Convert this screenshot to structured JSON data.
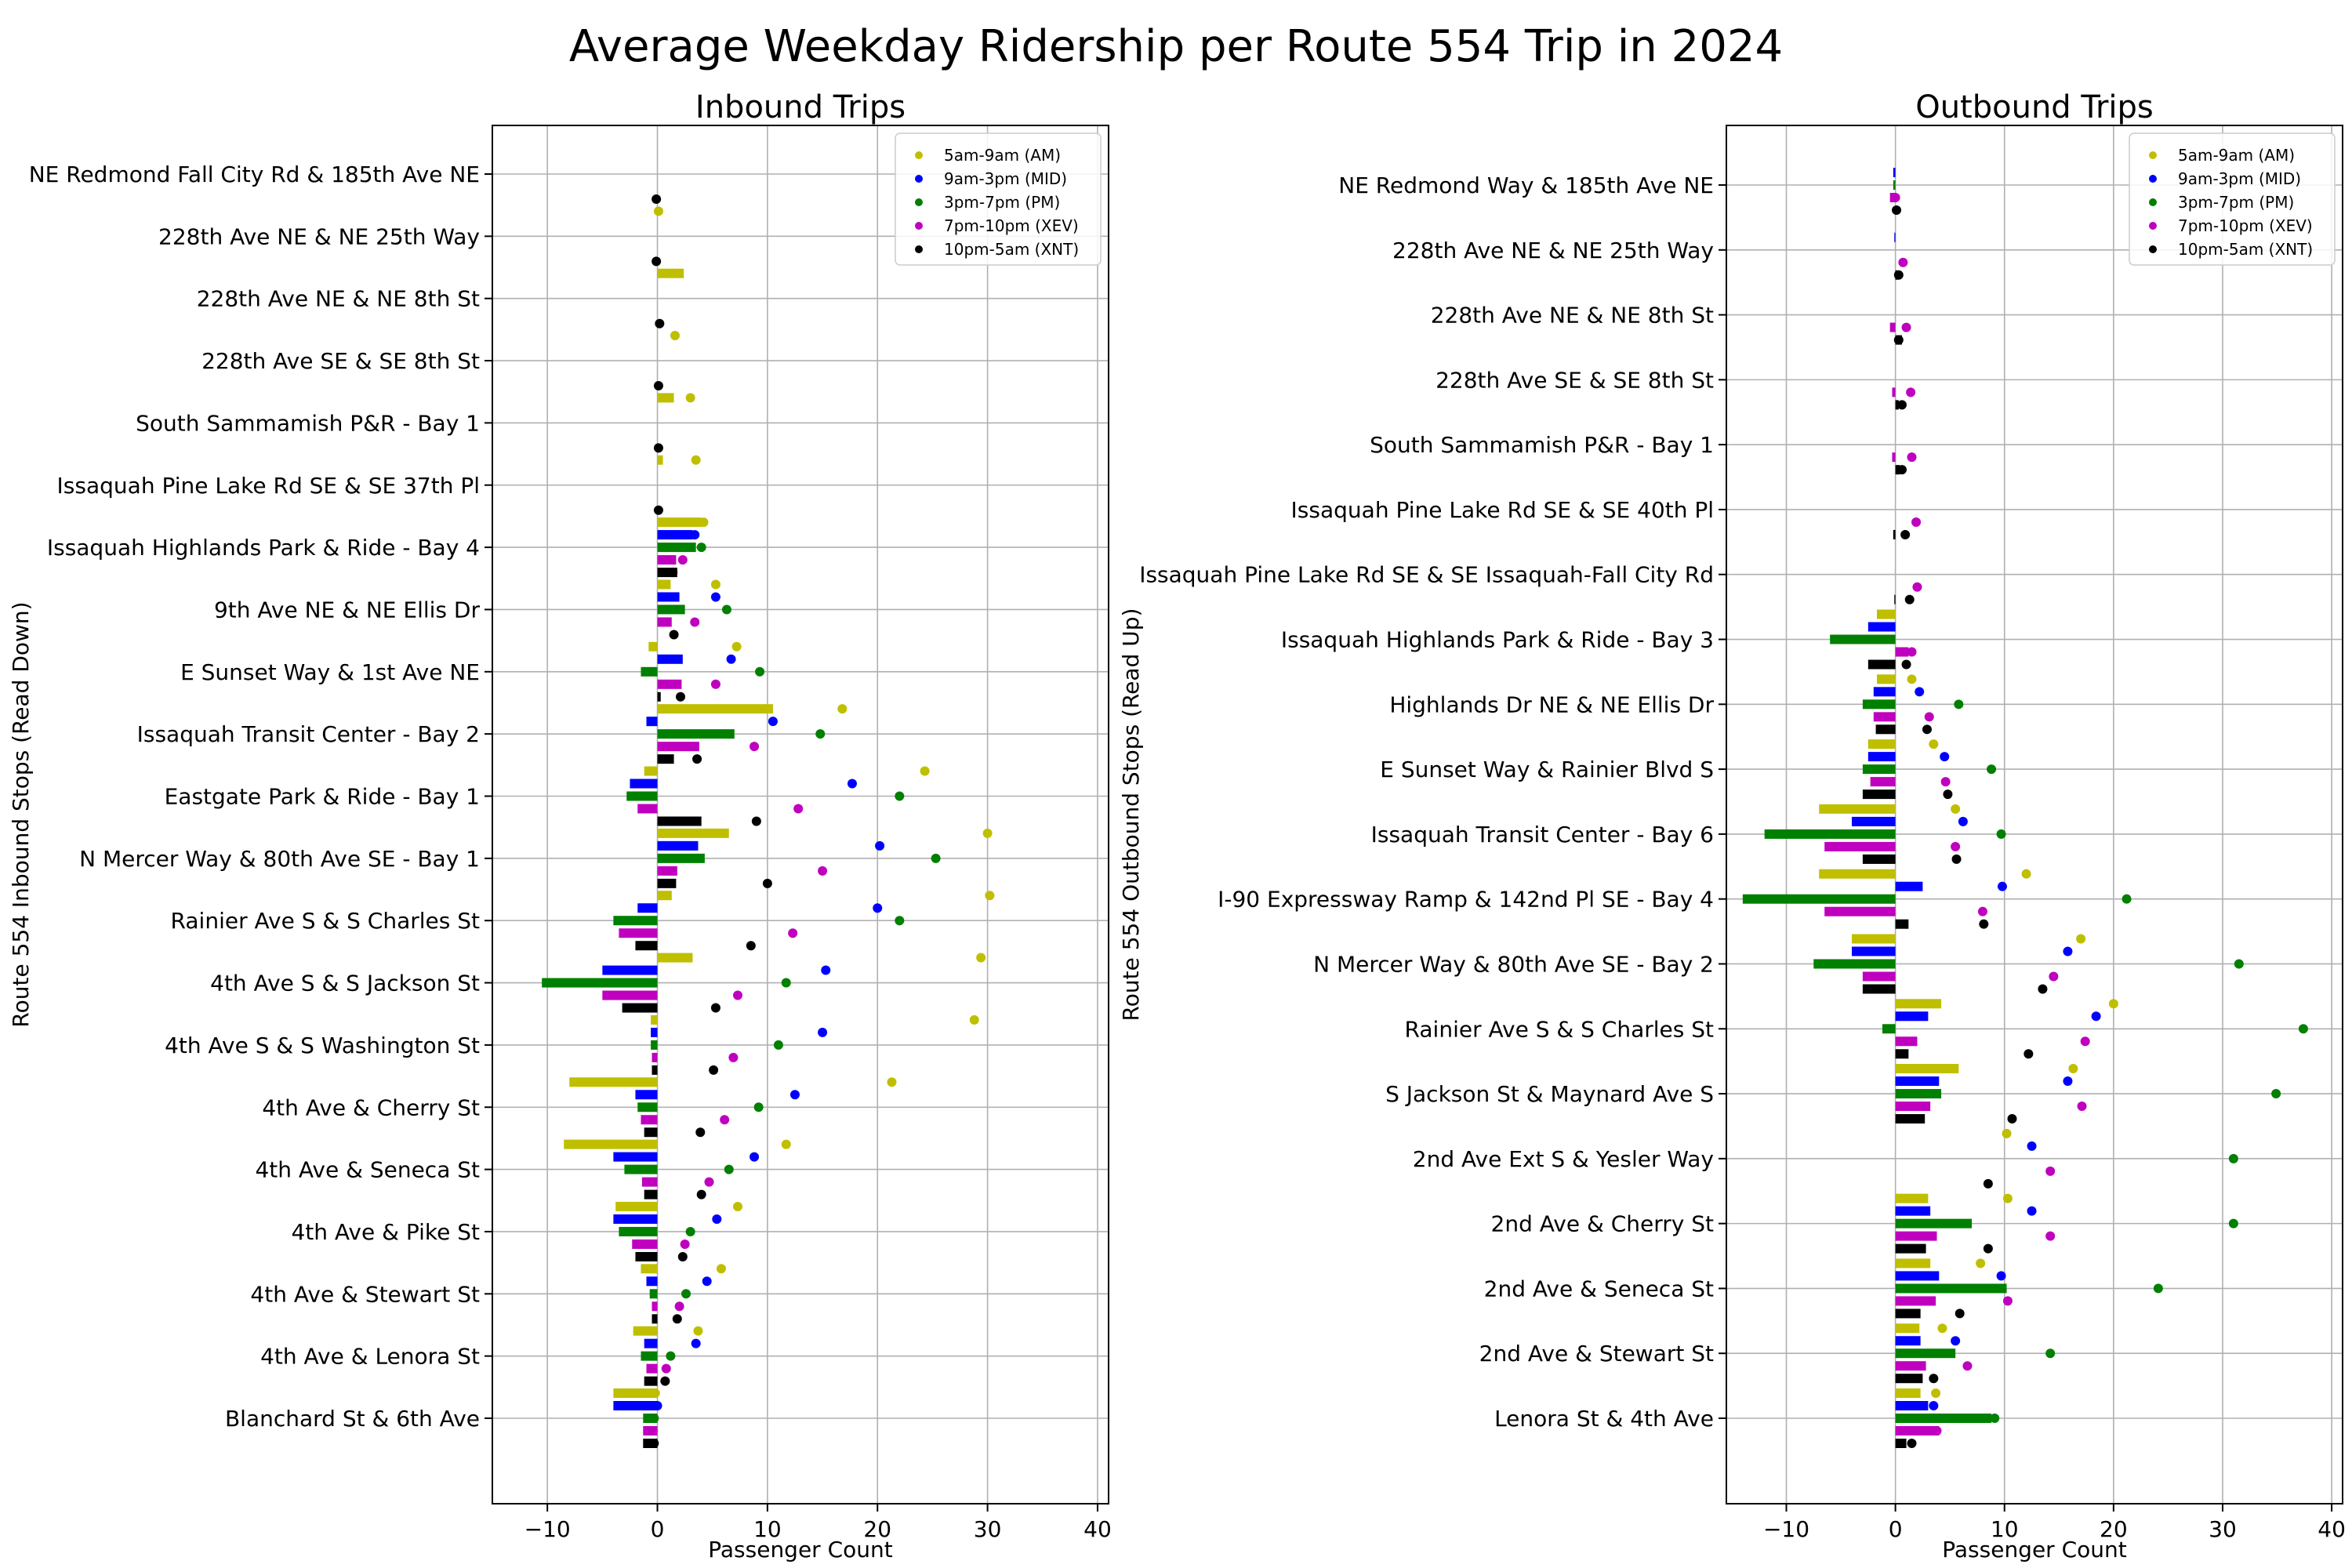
{
  "figure_title": "Average Weekday Ridership per Route 554 Trip in 2024",
  "colors": {
    "AM": "#bfbf00",
    "MID": "#0000ff",
    "PM": "#008000",
    "XEV": "#bf00bf",
    "XNT": "#000000"
  },
  "chart_data": [
    {
      "type": "bar",
      "title": "Inbound Trips",
      "xlabel": "Passenger Count",
      "ylabel": "Route 554 Inbound Stops (Read Down)",
      "xlim": [
        -15,
        41
      ],
      "xticks": [
        -10,
        0,
        10,
        20,
        30,
        40
      ],
      "grid": true,
      "legend_position": "top-right",
      "legend": [
        {
          "key": "AM",
          "label": "5am-9am (AM)"
        },
        {
          "key": "MID",
          "label": "9am-3pm (MID)"
        },
        {
          "key": "PM",
          "label": "3pm-7pm (PM)"
        },
        {
          "key": "XEV",
          "label": "7pm-10pm (XEV)"
        },
        {
          "key": "XNT",
          "label": "10pm-5am (XNT)"
        }
      ],
      "categories": [
        "NE Redmond Fall City Rd & 185th Ave NE",
        "228th Ave NE & NE 25th Way",
        "228th Ave NE & NE 8th St",
        "228th Ave SE & SE 8th St",
        "South Sammamish P&R - Bay 1",
        "Issaquah Pine Lake Rd SE & SE 37th Pl",
        "Issaquah Highlands Park & Ride - Bay 4",
        "9th Ave NE & NE Ellis Dr",
        "E Sunset Way & 1st Ave NE",
        "Issaquah Transit Center - Bay 2",
        "Eastgate Park & Ride - Bay 1",
        "N Mercer Way & 80th Ave SE - Bay 1",
        "Rainier Ave S & S Charles St",
        "4th Ave S & S Jackson St",
        "4th Ave S & S Washington St",
        "4th Ave & Cherry St",
        "4th Ave & Seneca St",
        "4th Ave & Pike St",
        "4th Ave & Stewart St",
        "4th Ave & Lenora St",
        "Blanchard St & 6th Ave"
      ],
      "bar_series": [
        {
          "key": "AM",
          "values": [
            0,
            0,
            2.4,
            0,
            1.5,
            0.5,
            4.0,
            1.2,
            -0.8,
            10.5,
            -1.2,
            6.5,
            1.3,
            3.2,
            -0.6,
            -8.0,
            -8.5,
            -3.8,
            -1.5,
            -2.2,
            -4.0
          ]
        },
        {
          "key": "MID",
          "values": [
            0,
            0,
            0,
            0,
            0,
            0,
            3.2,
            2.0,
            2.3,
            -1.0,
            -2.5,
            3.7,
            -1.8,
            -5.0,
            -0.6,
            -2.0,
            -4.0,
            -4.0,
            -1.0,
            -1.2,
            -4.0
          ]
        },
        {
          "key": "PM",
          "values": [
            0,
            0,
            0,
            0,
            0,
            0,
            3.5,
            2.5,
            -1.5,
            7.0,
            -2.8,
            4.3,
            -4.0,
            -10.5,
            -0.6,
            -1.8,
            -3.0,
            -3.5,
            -0.7,
            -1.5,
            -1.3
          ]
        },
        {
          "key": "XEV",
          "values": [
            0,
            0,
            0,
            0,
            0,
            0,
            1.7,
            1.3,
            2.2,
            3.8,
            -1.8,
            1.8,
            -3.5,
            -5.0,
            -0.5,
            -1.5,
            -1.4,
            -2.3,
            -0.5,
            -1.0,
            -1.3
          ]
        },
        {
          "key": "XNT",
          "values": [
            0,
            0,
            0,
            0,
            0,
            0,
            1.8,
            0,
            0.3,
            1.5,
            4.0,
            1.7,
            -2.0,
            -3.2,
            -0.5,
            -1.2,
            -1.2,
            -2.0,
            -0.5,
            -1.2,
            -1.3
          ]
        }
      ],
      "point_series": [
        {
          "key": "AM",
          "values": [
            null,
            0.1,
            1.8,
            1.6,
            3.0,
            3.5,
            4.2,
            5.3,
            7.2,
            16.8,
            24.3,
            30.0,
            30.2,
            29.4,
            28.8,
            21.3,
            11.7,
            7.3,
            5.8,
            3.7,
            -0.2
          ]
        },
        {
          "key": "MID",
          "values": [
            null,
            null,
            null,
            null,
            null,
            null,
            3.4,
            5.3,
            6.7,
            10.5,
            17.7,
            20.2,
            20.0,
            15.3,
            15.0,
            12.5,
            8.8,
            5.4,
            4.5,
            3.5,
            0
          ]
        },
        {
          "key": "PM",
          "values": [
            null,
            null,
            null,
            null,
            null,
            null,
            4.0,
            6.3,
            9.3,
            14.8,
            22.0,
            25.3,
            22.0,
            11.7,
            11.0,
            9.2,
            6.5,
            3.0,
            2.6,
            1.2,
            -0.3
          ]
        },
        {
          "key": "XEV",
          "values": [
            null,
            null,
            null,
            null,
            null,
            null,
            2.3,
            3.4,
            5.3,
            8.8,
            12.8,
            15.0,
            12.3,
            7.3,
            6.9,
            6.1,
            4.7,
            2.5,
            2.0,
            0.8,
            -0.4
          ]
        },
        {
          "key": "XNT",
          "values": [
            -0.1,
            -0.1,
            0.2,
            0.1,
            0.1,
            0.1,
            1.4,
            1.5,
            2.1,
            3.6,
            9.0,
            10.0,
            8.5,
            5.3,
            5.1,
            3.9,
            4.0,
            2.3,
            1.8,
            0.7,
            -0.3
          ]
        }
      ]
    },
    {
      "type": "bar",
      "title": "Outbound Trips",
      "xlabel": "Passenger Count",
      "ylabel": "Route 554 Outbound Stops (Read Up)",
      "xlim": [
        -15.5,
        41
      ],
      "xticks": [
        -10,
        0,
        10,
        20,
        30,
        40
      ],
      "grid": true,
      "legend_position": "top-right",
      "legend": [
        {
          "key": "AM",
          "label": "5am-9am (AM)"
        },
        {
          "key": "MID",
          "label": "9am-3pm (MID)"
        },
        {
          "key": "PM",
          "label": "3pm-7pm (PM)"
        },
        {
          "key": "XEV",
          "label": "7pm-10pm (XEV)"
        },
        {
          "key": "XNT",
          "label": "10pm-5am (XNT)"
        }
      ],
      "categories": [
        "NE Redmond Way & 185th Ave NE",
        "228th Ave NE & NE 25th Way",
        "228th Ave NE & NE 8th St",
        "228th Ave SE & SE 8th St",
        "South Sammamish P&R - Bay 1",
        "Issaquah Pine Lake Rd SE & SE 40th Pl",
        "Issaquah Pine Lake Rd SE & SE Issaquah-Fall City Rd",
        "Issaquah Highlands Park & Ride - Bay 3",
        "Highlands Dr NE & NE Ellis Dr",
        "E Sunset Way & Rainier Blvd S",
        "Issaquah Transit Center - Bay 6",
        "I-90 Expressway Ramp & 142nd Pl SE - Bay 4",
        "N Mercer Way & 80th Ave SE - Bay 2",
        "Rainier Ave S & S Charles St",
        "S Jackson St & Maynard Ave S",
        "2nd Ave Ext S & Yesler Way",
        "2nd Ave & Cherry St",
        "2nd Ave & Seneca St",
        "2nd Ave & Stewart St",
        "Lenora St & 4th Ave"
      ],
      "bar_series": [
        {
          "key": "AM",
          "values": [
            0,
            0,
            0,
            0,
            0,
            0,
            0,
            -1.7,
            -1.7,
            -2.5,
            -7.0,
            -7.0,
            -4.0,
            4.2,
            5.8,
            0,
            3.0,
            3.2,
            2.2,
            2.3
          ]
        },
        {
          "key": "MID",
          "values": [
            -0.2,
            -0.1,
            0,
            0,
            0,
            0,
            0,
            -2.5,
            -2.0,
            -2.5,
            -4.0,
            2.5,
            -4.0,
            3.0,
            4.0,
            0,
            3.2,
            4.0,
            2.3,
            3.0
          ]
        },
        {
          "key": "PM",
          "values": [
            -0.2,
            0,
            0,
            0,
            0,
            0,
            0,
            -6.0,
            -3.0,
            -3.0,
            -12.0,
            -14.0,
            -7.5,
            -1.2,
            4.2,
            0,
            7.0,
            10.2,
            5.5,
            8.8
          ]
        },
        {
          "key": "XEV",
          "values": [
            -0.5,
            0,
            -0.5,
            -0.3,
            -0.3,
            0,
            0,
            1.2,
            -2.0,
            -2.3,
            -6.5,
            -6.5,
            -3.0,
            2.0,
            3.2,
            0,
            3.8,
            3.7,
            2.8,
            4.0
          ]
        },
        {
          "key": "XNT",
          "values": [
            0,
            0.2,
            0.6,
            0.3,
            0.4,
            -0.2,
            -0.1,
            -2.5,
            -1.8,
            -3.0,
            -3.0,
            1.2,
            -3.0,
            1.2,
            2.7,
            0,
            2.8,
            2.3,
            2.5,
            1.0
          ]
        }
      ],
      "point_series": [
        {
          "key": "AM",
          "values": [
            null,
            null,
            null,
            null,
            null,
            null,
            null,
            null,
            1.5,
            3.5,
            5.5,
            12.0,
            17.0,
            20.0,
            16.3,
            10.2,
            10.3,
            7.8,
            4.3,
            3.7
          ]
        },
        {
          "key": "MID",
          "values": [
            null,
            null,
            null,
            null,
            null,
            null,
            null,
            null,
            2.2,
            4.5,
            6.2,
            9.8,
            15.8,
            18.4,
            15.8,
            12.5,
            12.5,
            9.7,
            5.5,
            3.5
          ]
        },
        {
          "key": "PM",
          "values": [
            null,
            null,
            null,
            null,
            null,
            null,
            null,
            null,
            5.8,
            8.8,
            9.7,
            21.2,
            31.5,
            37.4,
            34.9,
            31.0,
            31.0,
            24.1,
            14.2,
            9.1
          ]
        },
        {
          "key": "XEV",
          "values": [
            0,
            0.7,
            1.0,
            1.4,
            1.5,
            1.9,
            2.0,
            1.5,
            3.1,
            4.6,
            5.5,
            8.0,
            14.5,
            17.4,
            17.1,
            14.2,
            14.2,
            10.3,
            6.6,
            3.8
          ]
        },
        {
          "key": "XNT",
          "values": [
            0.1,
            0.3,
            0.3,
            0.6,
            0.6,
            0.9,
            1.3,
            1.0,
            2.9,
            4.8,
            5.6,
            8.1,
            13.5,
            12.2,
            10.7,
            8.5,
            8.5,
            5.9,
            3.5,
            1.5
          ]
        }
      ]
    }
  ]
}
